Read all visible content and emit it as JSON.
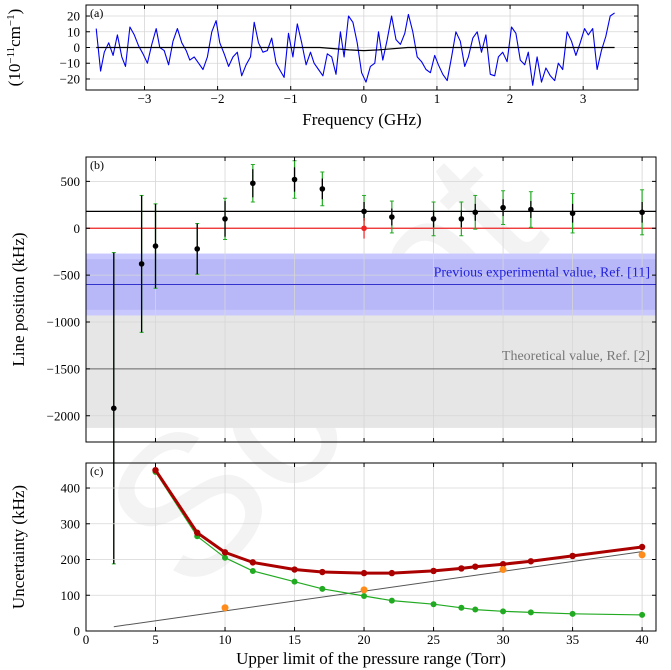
{
  "chart_data": [
    {
      "id": "a",
      "type": "line",
      "panel_label": "(a)",
      "xlabel": "Frequency (GHz)",
      "ylabel_main": "(10",
      "ylabel_sup1": "−11",
      "ylabel_mid": "cm",
      "ylabel_sup2": "−1",
      "ylabel_end": ")",
      "xlim": [
        -3.8,
        3.75
      ],
      "ylim": [
        -27,
        27
      ],
      "xticks": [
        -3,
        -2,
        -1,
        0,
        1,
        2,
        3
      ],
      "xtick_labels": [
        "−3",
        "−2",
        "−1",
        "0",
        "1",
        "2",
        "3"
      ],
      "yticks": [
        -20,
        -10,
        0,
        10,
        20
      ],
      "ytick_labels": [
        "−20",
        "−10",
        "0",
        "10",
        "20"
      ],
      "grid": true,
      "colors": {
        "residual": "#0000ee",
        "fit": "#000000"
      },
      "series": [
        {
          "x": [
            -3.66,
            -3.6,
            -3.55,
            -3.49,
            -3.43,
            -3.37,
            -3.31,
            -3.26,
            -3.2,
            -3.14,
            -3.08,
            -3.02,
            -2.96,
            -2.9,
            -2.84,
            -2.79,
            -2.73,
            -2.67,
            -2.61,
            -2.55,
            -2.49,
            -2.43,
            -2.38,
            -2.32,
            -2.26,
            -2.2,
            -2.14,
            -2.08,
            -2.02,
            -1.97,
            -1.91,
            -1.85,
            -1.79,
            -1.73,
            -1.67,
            -1.61,
            -1.55,
            -1.5,
            -1.44,
            -1.38,
            -1.32,
            -1.26,
            -1.2,
            -1.14,
            -1.09,
            -1.03,
            -0.97,
            -0.91,
            -0.85,
            -0.79,
            -0.73,
            -0.68,
            -0.62,
            -0.56,
            -0.5,
            -0.44,
            -0.38,
            -0.32,
            -0.27,
            -0.21,
            -0.15,
            -0.09,
            -0.03,
            0.03,
            0.09,
            0.15,
            0.2,
            0.26,
            0.32,
            0.38,
            0.44,
            0.5,
            0.56,
            0.61,
            0.67,
            0.73,
            0.79,
            0.85,
            0.91,
            0.97,
            1.02,
            1.08,
            1.14,
            1.2,
            1.26,
            1.32,
            1.38,
            1.43,
            1.49,
            1.55,
            1.61,
            1.67,
            1.73,
            1.79,
            1.84,
            1.9,
            1.96,
            2.02,
            2.08,
            2.14,
            2.2,
            2.25,
            2.31,
            2.37,
            2.43,
            2.49,
            2.55,
            2.61,
            2.66,
            2.72,
            2.78,
            2.84,
            2.9,
            2.96,
            3.02,
            3.07,
            3.13,
            3.19,
            3.25,
            3.31,
            3.37,
            3.43
          ],
          "y": [
            12,
            -15,
            -3,
            3,
            -5,
            8,
            -6,
            -12,
            13,
            8,
            1,
            -4,
            -10,
            2,
            12,
            0,
            -2,
            -11,
            4,
            12,
            3,
            -2,
            -8,
            -6,
            -10,
            -14,
            -6,
            10,
            17,
            3,
            -4,
            -12,
            -6,
            -3,
            -18,
            -11,
            -6,
            16,
            3,
            -3,
            -2,
            6,
            -10,
            -15,
            -19,
            9,
            -6,
            15,
            3,
            -11,
            -3,
            -10,
            -14,
            -18,
            -4,
            -6,
            -17,
            10,
            -6,
            20,
            16,
            3,
            -16,
            -22,
            -12,
            -10,
            10,
            -8,
            5,
            20,
            5,
            2,
            9,
            21,
            10,
            -6,
            -9,
            -14,
            -16,
            -5,
            -11,
            -17,
            -21,
            -6,
            10,
            4,
            -12,
            -6,
            6,
            10,
            -3,
            8,
            -17,
            -18,
            -6,
            -3,
            -9,
            13,
            9,
            -8,
            -11,
            -3,
            -24,
            -6,
            -22,
            -13,
            -18,
            -21,
            -10,
            -14,
            10,
            4,
            -5,
            3,
            12,
            8,
            12,
            -14,
            -2,
            7,
            20,
            22
          ]
        },
        {
          "x": [
            -3.66,
            -2.5,
            -1.5,
            -0.6,
            -0.2,
            0,
            0.2,
            0.6,
            1.5,
            2.5,
            3.43
          ],
          "y": [
            0,
            0,
            0,
            0,
            -1.5,
            -2,
            -1.5,
            0,
            0,
            0,
            0
          ]
        }
      ]
    },
    {
      "id": "b",
      "type": "scatter",
      "panel_label": "(b)",
      "xlabel": "",
      "ylabel": "Line position (kHz)",
      "xlim": [
        0,
        41
      ],
      "ylim": [
        -2280,
        760
      ],
      "xticks": [
        0,
        5,
        10,
        15,
        20,
        25,
        30,
        35,
        40
      ],
      "yticks": [
        -2000,
        -1500,
        -1000,
        -500,
        0,
        500
      ],
      "ytick_labels": [
        "−2000",
        "−1500",
        "−1000",
        "−500",
        "0",
        "500"
      ],
      "grid": true,
      "annotations": [
        {
          "text": "Previous experimental value, Ref. [11]",
          "value": -600,
          "band": [
            -930,
            -270
          ],
          "inner_band": [
            -870,
            -330
          ],
          "color": "#2222dd",
          "band_color": "#c8c8ff"
        },
        {
          "text": "Theoretical value, Ref. [2]",
          "value": -1500,
          "band": [
            -2130,
            -870
          ],
          "color": "#777777",
          "band_color": "#e6e6e6"
        }
      ],
      "reference_lines": [
        {
          "value": 180,
          "color": "#000000"
        },
        {
          "value": 0,
          "color": "#ee2222"
        }
      ],
      "series": [
        {
          "name": "",
          "color": "#000000",
          "x": [
            2,
            4,
            5,
            8,
            10,
            12,
            15,
            17,
            20,
            22,
            25,
            27,
            28,
            30,
            32,
            35,
            40
          ],
          "y": [
            -1920,
            -380,
            -190,
            -220,
            100,
            480,
            520,
            420,
            180,
            120,
            100,
            100,
            170,
            220,
            200,
            160,
            170
          ],
          "err_outer": [
            1660,
            730,
            450,
            270,
            220,
            200,
            200,
            180,
            170,
            170,
            180,
            180,
            180,
            180,
            190,
            210,
            240
          ],
          "err_inner": [
            1660,
            730,
            450,
            270,
            190,
            150,
            130,
            110,
            100,
            90,
            90,
            90,
            90,
            90,
            90,
            100,
            110
          ]
        },
        {
          "name": "",
          "color": "#ee2222",
          "x": [
            20
          ],
          "y": [
            0
          ],
          "err": [
            110
          ]
        }
      ]
    },
    {
      "id": "c",
      "type": "line",
      "panel_label": "(c)",
      "xlabel": "Upper limit of the pressure range (Torr)",
      "ylabel": "Uncertainty (kHz)",
      "xlim": [
        0,
        41
      ],
      "ylim": [
        0,
        470
      ],
      "xticks": [
        0,
        5,
        10,
        15,
        20,
        25,
        30,
        35,
        40
      ],
      "yticks": [
        0,
        100,
        200,
        300,
        400
      ],
      "grid": true,
      "series": [
        {
          "name": "",
          "color": "#aa0000",
          "x": [
            5,
            8,
            10,
            12,
            15,
            17,
            20,
            22,
            25,
            27,
            28,
            30,
            32,
            35,
            40
          ],
          "y": [
            450,
            275,
            220,
            192,
            172,
            165,
            162,
            162,
            168,
            175,
            180,
            187,
            195,
            210,
            235
          ]
        },
        {
          "name": "",
          "color": "#22aa22",
          "x": [
            5,
            8,
            10,
            12,
            15,
            17,
            20,
            22,
            25,
            27,
            28,
            30,
            32,
            35,
            40
          ],
          "y": [
            445,
            265,
            205,
            168,
            138,
            118,
            98,
            85,
            75,
            65,
            60,
            55,
            52,
            48,
            45
          ]
        },
        {
          "name": "",
          "color": "#ff8c1a",
          "x": [
            10,
            20,
            30,
            40
          ],
          "y": [
            65,
            115,
            172,
            213
          ]
        },
        {
          "name": "",
          "color": "#555555",
          "x": [
            2,
            40
          ],
          "y": [
            12,
            222
          ]
        }
      ]
    }
  ],
  "watermark": "Script"
}
